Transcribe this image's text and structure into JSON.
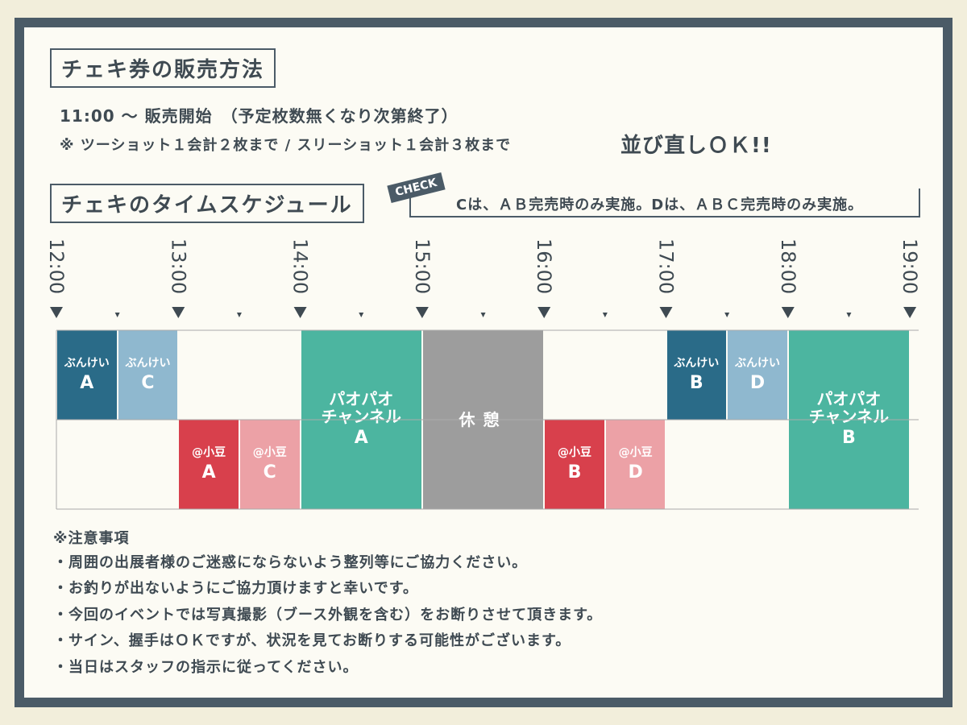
{
  "sales": {
    "title": "チェキ券の販売方法",
    "line1": "11:00 〜 販売開始　（予定枚数無くなり次第終了）",
    "line2": "※ ツーショット１会計２枚まで / スリーショット１会計３枚まで",
    "line2_emphasis": "並び直しＯＫ!!"
  },
  "schedule": {
    "title": "チェキのタイムスケジュール",
    "check_tag": "CHECK",
    "check_note": "Cは、ＡＢ完売時のみ実施。Dは、ＡＢＣ完売時のみ実施。",
    "times": [
      "12:00",
      "13:00",
      "14:00",
      "15:00",
      "16:00",
      "17:00",
      "18:00",
      "19:00"
    ],
    "blocks": [
      {
        "name": [
          "ぶんけい"
        ],
        "letter": "A"
      },
      {
        "name": [
          "ぶんけい"
        ],
        "letter": "C"
      },
      {
        "name": [
          "@小豆"
        ],
        "letter": "A"
      },
      {
        "name": [
          "@小豆"
        ],
        "letter": "C"
      },
      {
        "name": [
          "パオパオ",
          "チャンネル"
        ],
        "letter": "A"
      },
      {
        "name": [
          "休憩"
        ]
      },
      {
        "name": [
          "@小豆"
        ],
        "letter": "B"
      },
      {
        "name": [
          "@小豆"
        ],
        "letter": "D"
      },
      {
        "name": [
          "ぶんけい"
        ],
        "letter": "B"
      },
      {
        "name": [
          "ぶんけい"
        ],
        "letter": "D"
      },
      {
        "name": [
          "パオパオ",
          "チャンネル"
        ],
        "letter": "B"
      }
    ]
  },
  "notes": {
    "title": "※注意事項",
    "items": [
      "・周囲の出展者様のご迷惑にならないよう整列等にご協力ください。",
      "・お釣りが出ないようにご協力頂けますと幸いです。",
      "・今回のイベントでは写真撮影（ブース外観を含む）をお断りさせて頂きます。",
      "・サイン、握手はＯＫですが、状況を見てお断りする可能性がございます。",
      "・当日はスタッフの指示に従ってください。"
    ]
  }
}
